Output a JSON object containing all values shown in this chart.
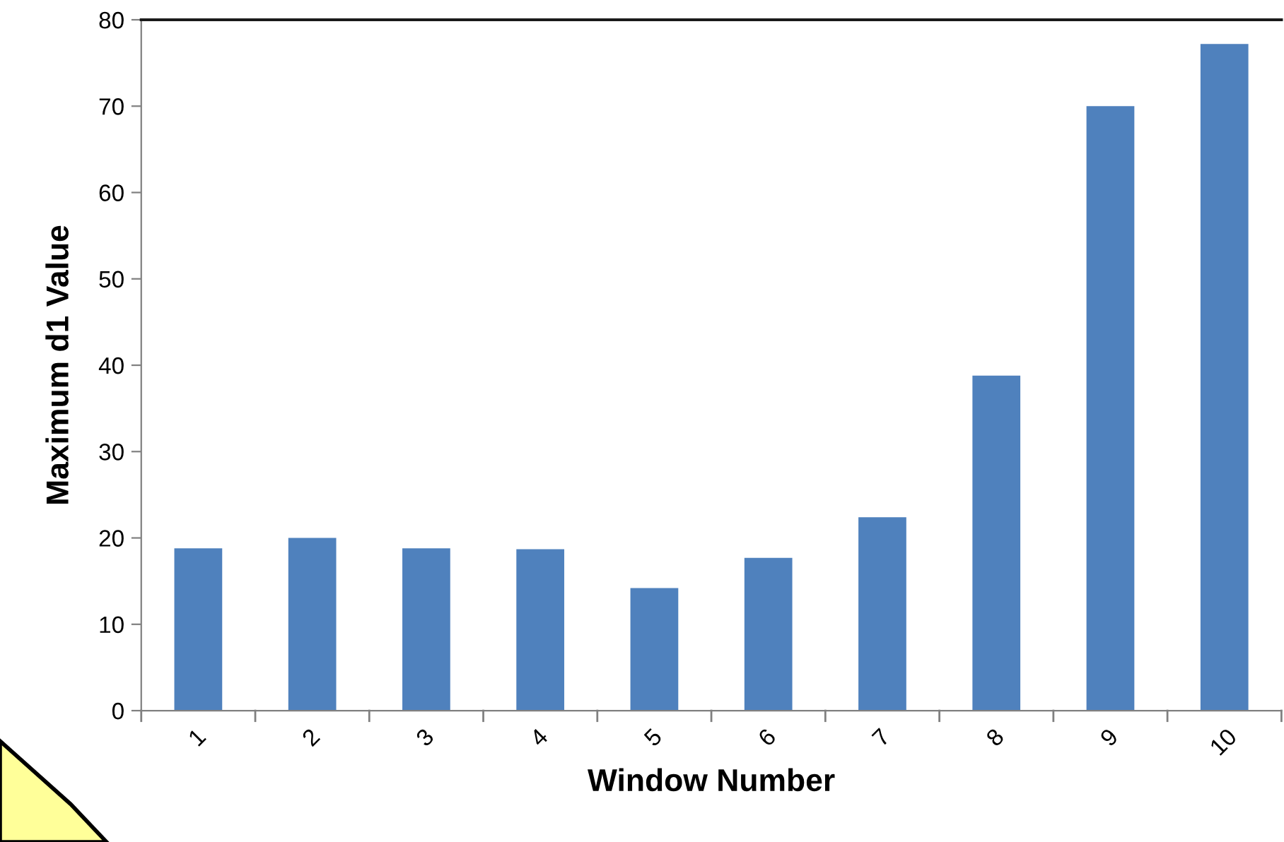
{
  "chart_data": {
    "type": "bar",
    "xlabel": "Window Number",
    "ylabel": "Maximum d1 Value",
    "categories": [
      "1",
      "2",
      "3",
      "4",
      "5",
      "6",
      "7",
      "8",
      "9",
      "10"
    ],
    "values": [
      18.8,
      20.0,
      18.8,
      18.7,
      14.2,
      17.7,
      22.4,
      38.8,
      70.0,
      77.2
    ],
    "color": "#4f81bd",
    "ylim": [
      0,
      80
    ],
    "yticks": [
      0,
      10,
      20,
      30,
      40,
      50,
      60,
      70,
      80
    ],
    "grid": false,
    "legend": false
  }
}
